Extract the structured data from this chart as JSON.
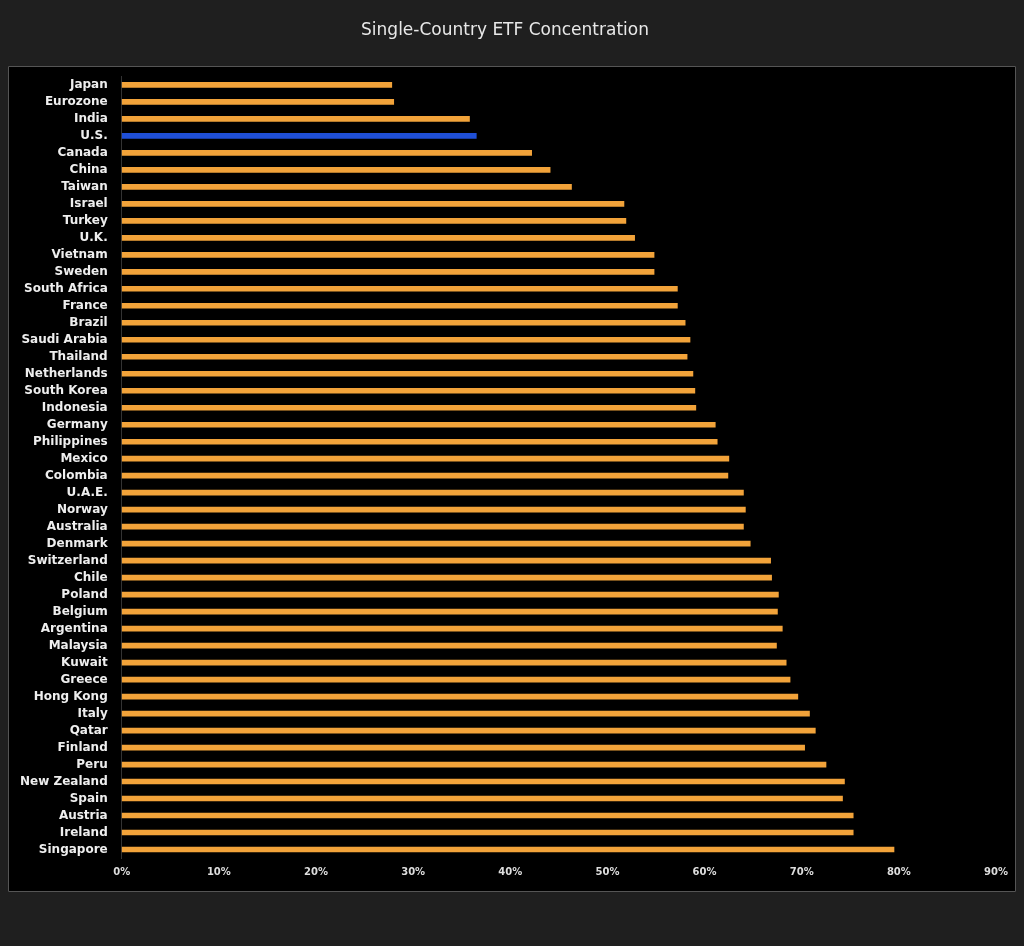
{
  "chart_data": {
    "type": "bar",
    "orientation": "horizontal",
    "title": "Single-Country ETF Concentration",
    "categories": [
      "Japan",
      "Eurozone",
      "India",
      "U.S.",
      "Canada",
      "China",
      "Taiwan",
      "Israel",
      "Turkey",
      "U.K.",
      "Vietnam",
      "Sweden",
      "South Africa",
      "France",
      "Brazil",
      "Saudi Arabia",
      "Thailand",
      "Netherlands",
      "South Korea",
      "Indonesia",
      "Germany",
      "Philippines",
      "Mexico",
      "Colombia",
      "U.A.E.",
      "Norway",
      "Australia",
      "Denmark",
      "Switzerland",
      "Chile",
      "Poland",
      "Belgium",
      "Argentina",
      "Malaysia",
      "Kuwait",
      "Greece",
      "Hong Kong",
      "Italy",
      "Qatar",
      "Finland",
      "Peru",
      "New Zealand",
      "Spain",
      "Austria",
      "Ireland",
      "Singapore"
    ],
    "values": [
      27.8,
      28.0,
      35.8,
      36.5,
      42.2,
      44.1,
      46.3,
      51.7,
      51.9,
      52.8,
      54.8,
      54.8,
      57.2,
      57.2,
      58.0,
      58.5,
      58.2,
      58.8,
      59.0,
      59.1,
      61.1,
      61.3,
      62.5,
      62.4,
      64.0,
      64.2,
      64.0,
      64.7,
      66.8,
      66.9,
      67.6,
      67.5,
      68.0,
      67.4,
      68.4,
      68.8,
      69.6,
      70.8,
      71.4,
      70.3,
      72.5,
      74.4,
      74.2,
      75.3,
      75.3,
      79.5
    ],
    "colors": [
      "#f2a33a",
      "#f2a33a",
      "#f2a33a",
      "#1f4fd6",
      "#f2a33a",
      "#f2a33a",
      "#f2a33a",
      "#f2a33a",
      "#f2a33a",
      "#f2a33a",
      "#f2a33a",
      "#f2a33a",
      "#f2a33a",
      "#f2a33a",
      "#f2a33a",
      "#f2a33a",
      "#f2a33a",
      "#f2a33a",
      "#f2a33a",
      "#f2a33a",
      "#f2a33a",
      "#f2a33a",
      "#f2a33a",
      "#f2a33a",
      "#f2a33a",
      "#f2a33a",
      "#f2a33a",
      "#f2a33a",
      "#f2a33a",
      "#f2a33a",
      "#f2a33a",
      "#f2a33a",
      "#f2a33a",
      "#f2a33a",
      "#f2a33a",
      "#f2a33a",
      "#f2a33a",
      "#f2a33a",
      "#f2a33a",
      "#f2a33a",
      "#f2a33a",
      "#f2a33a",
      "#f2a33a",
      "#f2a33a",
      "#f2a33a",
      "#f2a33a"
    ],
    "xlim": [
      0,
      90
    ],
    "xticks": [
      {
        "value": 0,
        "label": "0%"
      },
      {
        "value": 10,
        "label": "10%"
      },
      {
        "value": 20,
        "label": "20%"
      },
      {
        "value": 30,
        "label": "30%"
      },
      {
        "value": 40,
        "label": "40%"
      },
      {
        "value": 50,
        "label": "50%"
      },
      {
        "value": 60,
        "label": "60%"
      },
      {
        "value": 70,
        "label": "70%"
      },
      {
        "value": 80,
        "label": "80%"
      },
      {
        "value": 90,
        "label": "90%"
      }
    ],
    "grid": false,
    "legend": false
  }
}
